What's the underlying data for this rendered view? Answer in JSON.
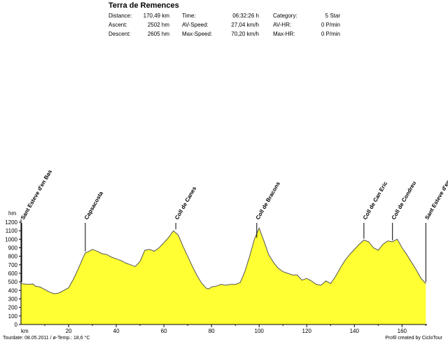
{
  "header": {
    "title": "Terra de Remences",
    "stats": [
      {
        "label": "Distance:",
        "value": "170,49 km"
      },
      {
        "label": "Ascent:",
        "value": "2502 hm"
      },
      {
        "label": "Descent:",
        "value": "2605 hm"
      },
      {
        "label": "Time:",
        "value": "06:32:26 h"
      },
      {
        "label": "AV-Speed:",
        "value": "27,04 km/h"
      },
      {
        "label": "Max-Speed:",
        "value": "70,20 km/h"
      },
      {
        "label": "Category:",
        "value": "5 Star"
      },
      {
        "label": "AV-HR:",
        "value": "0 P/min"
      },
      {
        "label": "Max-HR:",
        "value": "0 P/min"
      }
    ]
  },
  "chart_data": {
    "type": "area",
    "xlabel": "km",
    "ylabel": "hm",
    "xlim": [
      0,
      170.49
    ],
    "ylim": [
      0,
      1200
    ],
    "x_ticks": [
      20,
      40,
      60,
      80,
      100,
      120,
      140,
      160
    ],
    "y_ticks": [
      0,
      100,
      200,
      300,
      400,
      500,
      600,
      700,
      800,
      900,
      1000,
      1100,
      1200
    ],
    "grid": false,
    "fill_color": "#ffff33",
    "line_color": "#555555",
    "series": [
      {
        "x": [
          0,
          3,
          5,
          6,
          8,
          10,
          12,
          14,
          16,
          18,
          20,
          22,
          24,
          26,
          27,
          28,
          30,
          32,
          34,
          36,
          38,
          40,
          42,
          44,
          46,
          48,
          50,
          52,
          54,
          56,
          58,
          60,
          62,
          64,
          66,
          68,
          70,
          72,
          74,
          76,
          78,
          79,
          80,
          82,
          84,
          86,
          88,
          90,
          92,
          94,
          96,
          98,
          100,
          102,
          104,
          106,
          108,
          110,
          112,
          114,
          116,
          118,
          120,
          122,
          124,
          126,
          128,
          130,
          132,
          134,
          136,
          138,
          140,
          142,
          144,
          146,
          148,
          150,
          152,
          154,
          156,
          158,
          160,
          162,
          164,
          166,
          168,
          170
        ],
        "y": [
          480,
          470,
          475,
          450,
          440,
          410,
          380,
          360,
          370,
          400,
          430,
          530,
          650,
          780,
          840,
          850,
          880,
          860,
          830,
          820,
          790,
          770,
          750,
          720,
          700,
          680,
          740,
          870,
          880,
          860,
          900,
          960,
          1020,
          1100,
          1050,
          920,
          800,
          680,
          570,
          480,
          420,
          420,
          440,
          450,
          470,
          460,
          470,
          470,
          490,
          620,
          800,
          1000,
          1130,
          980,
          820,
          730,
          660,
          620,
          600,
          580,
          580,
          520,
          540,
          510,
          470,
          460,
          510,
          480,
          560,
          660,
          750,
          820,
          880,
          940,
          990,
          970,
          900,
          870,
          940,
          980,
          970,
          1000,
          900,
          820,
          730,
          640,
          540,
          480
        ]
      }
    ],
    "annotations": [
      {
        "x": 0,
        "label": "Sant Esteve d'en Bas"
      },
      {
        "x": 27,
        "label": "Capsacosta"
      },
      {
        "x": 65,
        "label": "Coll de Canes"
      },
      {
        "x": 99,
        "label": "Coll de Bracons"
      },
      {
        "x": 144,
        "label": "Coll de Can Eric"
      },
      {
        "x": 156,
        "label": "Coll de Condreu"
      },
      {
        "x": 170,
        "label": "Sant Esteve d'en Bas"
      }
    ]
  },
  "footer": {
    "left": "Tourdate: 08.05.2011  /  ø-Temp.: 18,6 °C",
    "right": "Profil created by CicloTour"
  }
}
